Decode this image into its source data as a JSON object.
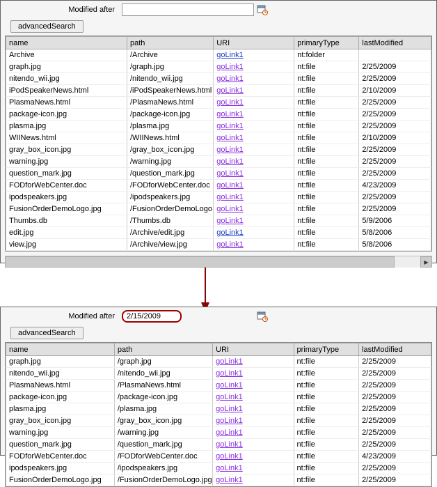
{
  "top": {
    "filterLabel": "Modified after",
    "dateValue": "",
    "advBtn": "advancedSearch",
    "headers": [
      "name",
      "path",
      "URI",
      "primaryType",
      "lastModified"
    ],
    "rows": [
      {
        "name": "Archive",
        "path": "/Archive",
        "uri": "goLink1",
        "uriBlue": true,
        "type": "nt:folder",
        "mod": ""
      },
      {
        "name": "graph.jpg",
        "path": "/graph.jpg",
        "uri": "goLink1",
        "type": "nt:file",
        "mod": "2/25/2009"
      },
      {
        "name": "nitendo_wii.jpg",
        "path": "/nitendo_wii.jpg",
        "uri": "goLink1",
        "type": "nt:file",
        "mod": "2/25/2009"
      },
      {
        "name": "iPodSpeakerNews.html",
        "path": "/iPodSpeakerNews.html",
        "uri": "goLink1",
        "type": "nt:file",
        "mod": "2/10/2009"
      },
      {
        "name": "PlasmaNews.html",
        "path": "/PlasmaNews.html",
        "uri": "goLink1",
        "type": "nt:file",
        "mod": "2/25/2009"
      },
      {
        "name": "package-icon.jpg",
        "path": "/package-icon.jpg",
        "uri": "goLink1",
        "type": "nt:file",
        "mod": "2/25/2009"
      },
      {
        "name": "plasma.jpg",
        "path": "/plasma.jpg",
        "uri": "goLink1",
        "type": "nt:file",
        "mod": "2/25/2009"
      },
      {
        "name": "WIINews.html",
        "path": "/WIINews.html",
        "uri": "goLink1",
        "type": "nt:file",
        "mod": "2/10/2009"
      },
      {
        "name": "gray_box_icon.jpg",
        "path": "/gray_box_icon.jpg",
        "uri": "goLink1",
        "type": "nt:file",
        "mod": "2/25/2009"
      },
      {
        "name": "warning.jpg",
        "path": "/warning.jpg",
        "uri": "goLink1",
        "type": "nt:file",
        "mod": "2/25/2009"
      },
      {
        "name": "question_mark.jpg",
        "path": "/question_mark.jpg",
        "uri": "goLink1",
        "type": "nt:file",
        "mod": "2/25/2009"
      },
      {
        "name": "FODforWebCenter.doc",
        "path": "/FODforWebCenter.doc",
        "uri": "goLink1",
        "type": "nt:file",
        "mod": "4/23/2009"
      },
      {
        "name": "ipodspeakers.jpg",
        "path": "/ipodspeakers.jpg",
        "uri": "goLink1",
        "type": "nt:file",
        "mod": "2/25/2009"
      },
      {
        "name": "FusionOrderDemoLogo.jpg",
        "path": "/FusionOrderDemoLogo.jpg",
        "uri": "goLink1",
        "type": "nt:file",
        "mod": "2/25/2009"
      },
      {
        "name": "Thumbs.db",
        "path": "/Thumbs.db",
        "uri": "goLink1",
        "type": "nt:file",
        "mod": "5/9/2006"
      },
      {
        "name": "edit.jpg",
        "path": "/Archive/edit.jpg",
        "uri": "goLink1",
        "uriBlue": true,
        "type": "nt:file",
        "mod": "5/8/2006"
      },
      {
        "name": "view.jpg",
        "path": "/Archive/view.jpg",
        "uri": "goLink1",
        "type": "nt:file",
        "mod": "5/8/2006"
      }
    ]
  },
  "bottom": {
    "filterLabel": "Modified after",
    "dateValue": "2/15/2009",
    "advBtn": "advancedSearch",
    "headers": [
      "name",
      "path",
      "URI",
      "primaryType",
      "lastModified"
    ],
    "rows": [
      {
        "name": "graph.jpg",
        "path": "/graph.jpg",
        "uri": "goLink1",
        "type": "nt:file",
        "mod": "2/25/2009"
      },
      {
        "name": "nitendo_wii.jpg",
        "path": "/nitendo_wii.jpg",
        "uri": "goLink1",
        "type": "nt:file",
        "mod": "2/25/2009"
      },
      {
        "name": "PlasmaNews.html",
        "path": "/PlasmaNews.html",
        "uri": "goLink1",
        "type": "nt:file",
        "mod": "2/25/2009"
      },
      {
        "name": "package-icon.jpg",
        "path": "/package-icon.jpg",
        "uri": "goLink1",
        "type": "nt:file",
        "mod": "2/25/2009"
      },
      {
        "name": "plasma.jpg",
        "path": "/plasma.jpg",
        "uri": "goLink1",
        "type": "nt:file",
        "mod": "2/25/2009"
      },
      {
        "name": "gray_box_icon.jpg",
        "path": "/gray_box_icon.jpg",
        "uri": "goLink1",
        "type": "nt:file",
        "mod": "2/25/2009"
      },
      {
        "name": "warning.jpg",
        "path": "/warning.jpg",
        "uri": "goLink1",
        "type": "nt:file",
        "mod": "2/25/2009"
      },
      {
        "name": "question_mark.jpg",
        "path": "/question_mark.jpg",
        "uri": "goLink1",
        "type": "nt:file",
        "mod": "2/25/2009"
      },
      {
        "name": "FODforWebCenter.doc",
        "path": "/FODforWebCenter.doc",
        "uri": "goLink1",
        "type": "nt:file",
        "mod": "4/23/2009"
      },
      {
        "name": "ipodspeakers.jpg",
        "path": "/ipodspeakers.jpg",
        "uri": "goLink1",
        "type": "nt:file",
        "mod": "2/25/2009"
      },
      {
        "name": "FusionOrderDemoLogo.jpg",
        "path": "/FusionOrderDemoLogo.jpg",
        "uri": "goLink1",
        "type": "nt:file",
        "mod": "2/25/2009"
      }
    ]
  },
  "scroll": {
    "rightArrow": "▶"
  }
}
